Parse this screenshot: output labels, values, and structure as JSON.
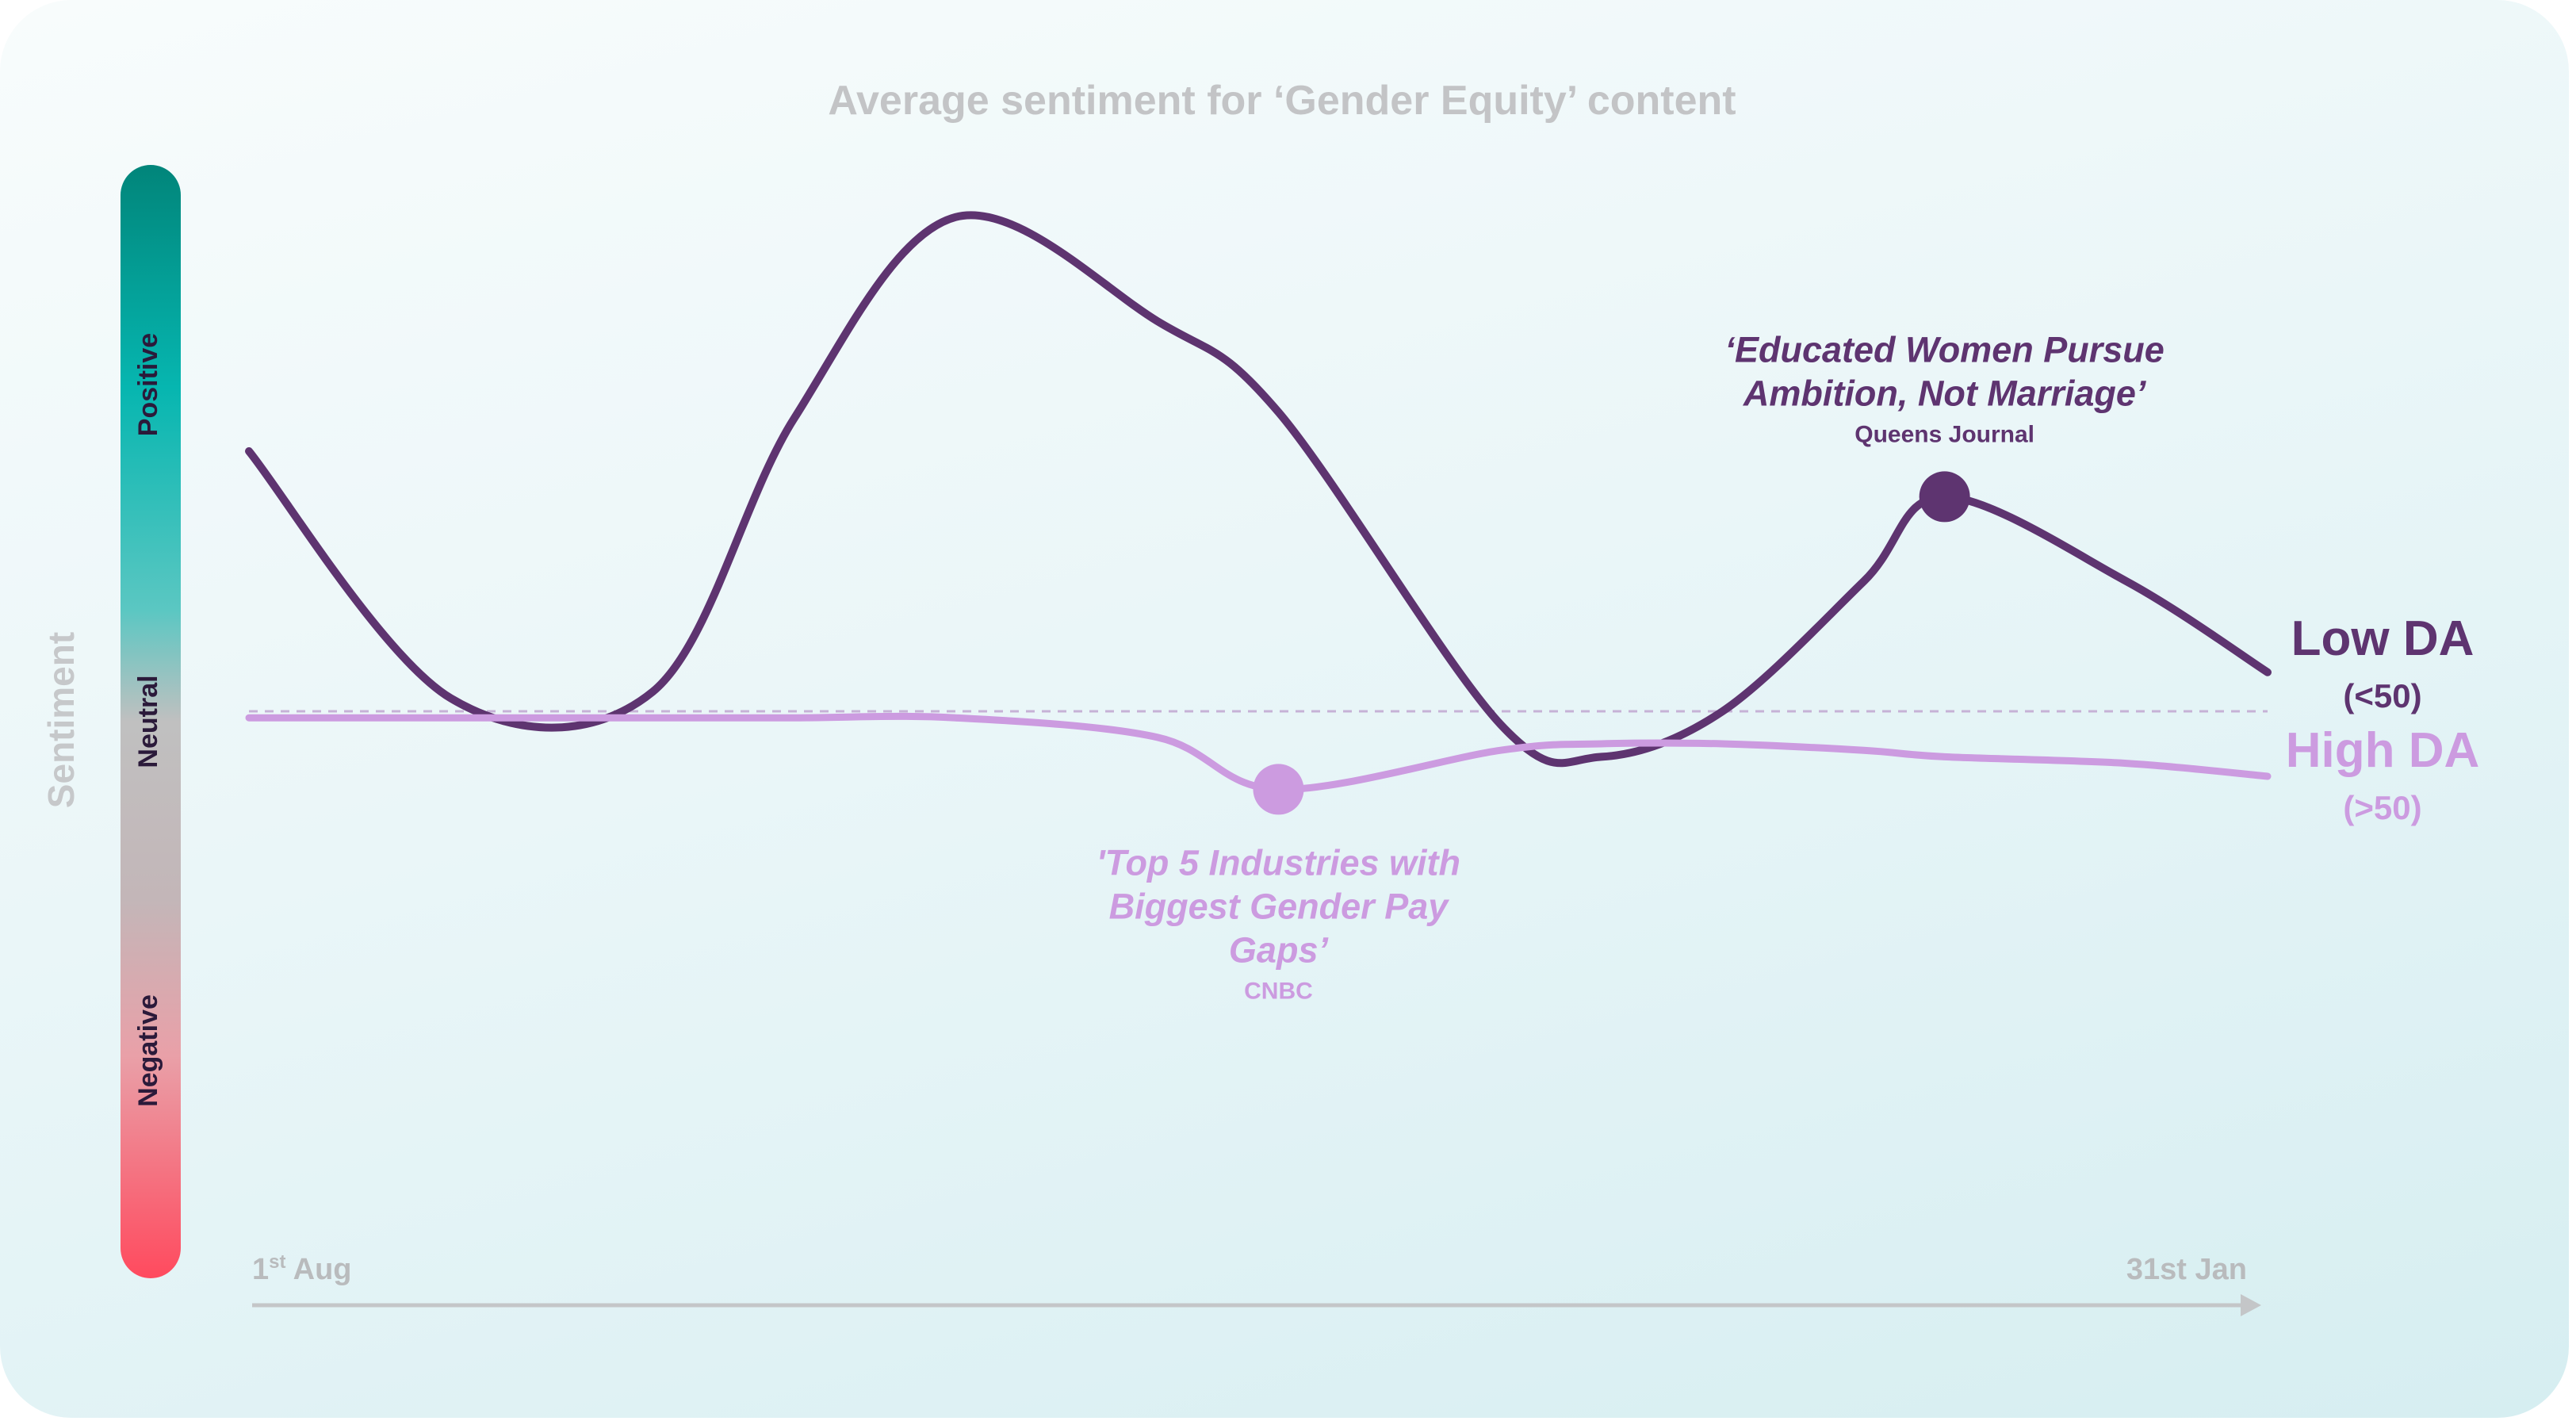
{
  "chart_data": {
    "type": "line",
    "title": "Average sentiment for ‘Gender Equity’ content",
    "ylabel": "Sentiment",
    "y_bands": [
      "Positive",
      "Neutral",
      "Negative"
    ],
    "ylim": [
      -1,
      1
    ],
    "x_start_label": {
      "main": "1",
      "sup": "st",
      "rest": " Aug"
    },
    "x_end_label": "31st Jan",
    "neutral_line": 0,
    "x": [
      0,
      0.1,
      0.2,
      0.27,
      0.35,
      0.45,
      0.51,
      0.62,
      0.67,
      0.73,
      0.8,
      0.84,
      0.93,
      1.0
    ],
    "series": [
      {
        "name": "Low DA",
        "sublabel": "(<50)",
        "color": "#5e3470",
        "values": [
          0.4,
          0.02,
          0.03,
          0.45,
          0.76,
          0.6,
          0.46,
          -0.02,
          -0.07,
          0.0,
          0.2,
          0.33,
          0.2,
          0.06
        ]
      },
      {
        "name": "High DA",
        "sublabel": "(>50)",
        "color": "#cc9be0",
        "values": [
          -0.01,
          -0.01,
          -0.01,
          -0.01,
          -0.01,
          -0.04,
          -0.12,
          -0.06,
          -0.05,
          -0.05,
          -0.06,
          -0.07,
          -0.08,
          -0.1
        ]
      }
    ],
    "annotations": [
      {
        "series": "Low DA",
        "x": 0.84,
        "y": 0.33,
        "lines": [
          "‘Educated Women Pursue",
          "Ambition, Not Marriage’"
        ],
        "source": "Queens Journal"
      },
      {
        "series": "High DA",
        "x": 0.51,
        "y": -0.12,
        "lines": [
          "'Top 5 Industries with",
          "Biggest Gender Pay",
          "Gaps’"
        ],
        "source": "CNBC"
      }
    ]
  },
  "colors": {
    "low_da": "#5e3470",
    "high_da": "#cc9be0",
    "gradient_positive": "#01857a",
    "gradient_neutral": "#bdbdbd",
    "gradient_negative": "#ff4a5e"
  }
}
